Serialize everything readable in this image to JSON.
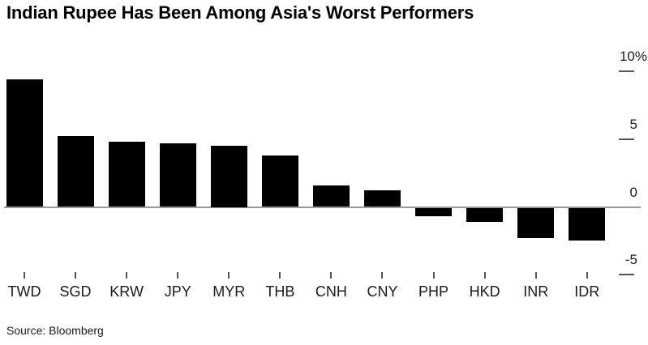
{
  "chart_data": {
    "type": "bar",
    "title": "Indian Rupee Has Been Among Asia's Worst Performers",
    "source": "Source: Bloomberg",
    "unit": "%",
    "categories": [
      "TWD",
      "SGD",
      "KRW",
      "JPY",
      "MYR",
      "THB",
      "CNH",
      "CNY",
      "PHP",
      "HKD",
      "INR",
      "IDR"
    ],
    "values": [
      9.4,
      5.2,
      4.8,
      4.7,
      4.5,
      3.8,
      1.6,
      1.2,
      -0.6,
      -1.0,
      -2.2,
      -2.4
    ],
    "y_ticks": [
      {
        "label": "10%",
        "value": 10
      },
      {
        "label": "5",
        "value": 5
      },
      {
        "label": "0",
        "value": 0
      },
      {
        "label": "-5",
        "value": -5
      }
    ],
    "ylim": [
      -6,
      11
    ],
    "xlabel": "",
    "ylabel": "",
    "grid": false,
    "legend_position": "none",
    "y_axis_side": "right",
    "bar_color": "#000000",
    "background_color": "#ffffff",
    "axis_line_color": "#9a9a9a",
    "tick_color": "#555555",
    "label_color": "#1a1a1a"
  }
}
